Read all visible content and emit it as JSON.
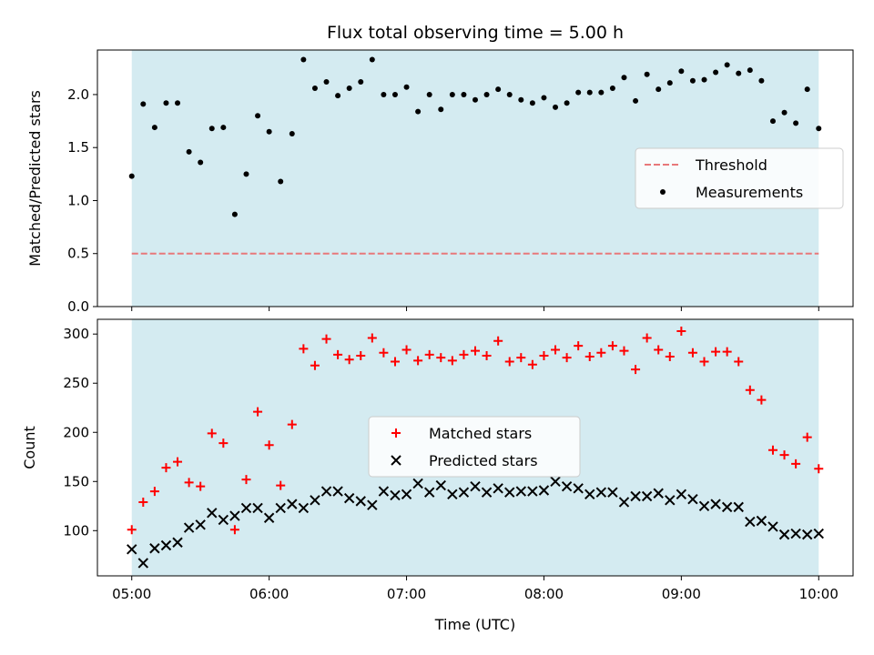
{
  "chart_data": {
    "type": "scatter",
    "title": "Flux total observing time = 5.00 h",
    "xlabel": "Time (UTC)",
    "x_ticks": [
      "05:00",
      "06:00",
      "07:00",
      "08:00",
      "09:00",
      "10:00"
    ],
    "x_unit": "hours UTC",
    "x": [
      5.0,
      5.0833,
      5.1667,
      5.25,
      5.3333,
      5.4167,
      5.5,
      5.5833,
      5.6667,
      5.75,
      5.8333,
      5.9167,
      6.0,
      6.0833,
      6.1667,
      6.25,
      6.3333,
      6.4167,
      6.5,
      6.5833,
      6.6667,
      6.75,
      6.8333,
      6.9167,
      7.0,
      7.0833,
      7.1667,
      7.25,
      7.3333,
      7.4167,
      7.5,
      7.5833,
      7.6667,
      7.75,
      7.8333,
      7.9167,
      8.0,
      8.0833,
      8.1667,
      8.25,
      8.3333,
      8.4167,
      8.5,
      8.5833,
      8.6667,
      8.75,
      8.8333,
      8.9167,
      9.0,
      9.0833,
      9.1667,
      9.25,
      9.3333,
      9.4167,
      9.5,
      9.5833,
      9.6667,
      9.75,
      9.8333,
      9.9167,
      10.0
    ],
    "shaded_x_range": [
      5.0,
      10.0
    ],
    "panels": [
      {
        "ylabel": "Matched/Predicted stars",
        "ylim": [
          0,
          2.42
        ],
        "y_ticks": [
          0.0,
          0.5,
          1.0,
          1.5,
          2.0
        ],
        "threshold": 0.5,
        "legend_position": "right",
        "series": [
          {
            "name": "Threshold",
            "type": "line",
            "style": "dashed",
            "color": "#e8787a"
          },
          {
            "name": "Measurements",
            "type": "scatter",
            "marker": "dot",
            "color": "#000000",
            "values": [
              1.23,
              1.91,
              1.69,
              1.92,
              1.92,
              1.46,
              1.36,
              1.68,
              1.69,
              0.87,
              1.25,
              1.8,
              1.65,
              1.18,
              1.63,
              2.33,
              2.06,
              2.12,
              1.99,
              2.06,
              2.12,
              2.33,
              2.0,
              2.0,
              2.07,
              1.84,
              2.0,
              1.86,
              2.0,
              2.0,
              1.95,
              2.0,
              2.05,
              2.0,
              1.95,
              1.92,
              1.97,
              1.88,
              1.92,
              2.02,
              2.02,
              2.02,
              2.06,
              2.16,
              1.94,
              2.19,
              2.05,
              2.11,
              2.22,
              2.13,
              2.14,
              2.21,
              2.28,
              2.2,
              2.23,
              2.13,
              1.75,
              1.83,
              1.73,
              2.05,
              1.68
            ]
          }
        ]
      },
      {
        "ylabel": "Count",
        "ylim": [
          54,
          315
        ],
        "y_ticks": [
          100,
          150,
          200,
          250,
          300
        ],
        "legend_position": "center",
        "series": [
          {
            "name": "Matched stars",
            "type": "scatter",
            "marker": "plus",
            "color": "#ff0000",
            "values": [
              101,
              129,
              140,
              164,
              170,
              149,
              145,
              199,
              189,
              101,
              152,
              221,
              187,
              146,
              208,
              285,
              268,
              295,
              279,
              274,
              278,
              296,
              281,
              272,
              284,
              273,
              279,
              276,
              273,
              279,
              283,
              278,
              293,
              272,
              276,
              269,
              278,
              284,
              276,
              288,
              277,
              281,
              288,
              283,
              264,
              296,
              284,
              277,
              303,
              281,
              272,
              282,
              282,
              272,
              243,
              233,
              182,
              177,
              168,
              195,
              163
            ]
          },
          {
            "name": "Predicted stars",
            "type": "scatter",
            "marker": "x",
            "color": "#000000",
            "values": [
              81,
              67,
              82,
              85,
              88,
              103,
              106,
              118,
              111,
              115,
              123,
              123,
              113,
              123,
              127,
              123,
              131,
              140,
              140,
              133,
              130,
              126,
              140,
              136,
              137,
              148,
              139,
              146,
              137,
              139,
              145,
              139,
              143,
              139,
              140,
              140,
              141,
              150,
              145,
              143,
              137,
              139,
              139,
              129,
              135,
              135,
              138,
              131,
              137,
              132,
              125,
              127,
              124,
              124,
              109,
              110,
              104,
              96,
              97,
              96,
              97
            ]
          }
        ]
      }
    ],
    "background_shade_color": "#d4ebf1"
  }
}
